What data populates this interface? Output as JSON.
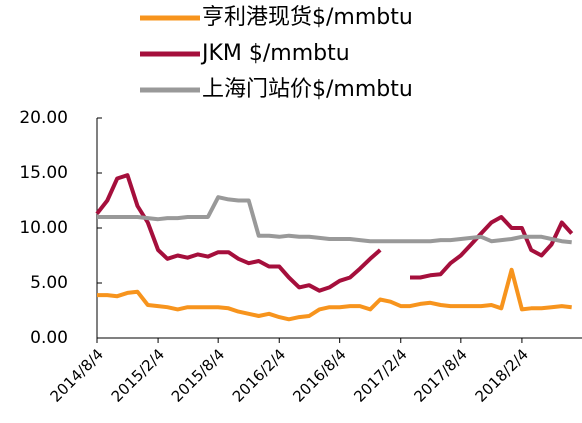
{
  "chart_data": {
    "type": "line",
    "x": [
      "2014/8/4",
      "2014/9/4",
      "2014/10/4",
      "2014/11/4",
      "2014/12/4",
      "2015/1/4",
      "2015/2/4",
      "2015/3/4",
      "2015/4/4",
      "2015/5/4",
      "2015/6/4",
      "2015/7/4",
      "2015/8/4",
      "2015/9/4",
      "2015/10/4",
      "2015/11/4",
      "2015/12/4",
      "2016/1/4",
      "2016/2/4",
      "2016/3/4",
      "2016/4/4",
      "2016/5/4",
      "2016/6/4",
      "2016/7/4",
      "2016/8/4",
      "2016/9/4",
      "2016/10/4",
      "2016/11/4",
      "2016/12/4",
      "2017/1/4",
      "2017/2/4",
      "2017/3/4",
      "2017/4/4",
      "2017/5/4",
      "2017/6/4",
      "2017/7/4",
      "2017/8/4",
      "2017/9/4",
      "2017/10/4",
      "2017/11/4",
      "2017/12/4",
      "2018/1/4",
      "2018/2/4",
      "2018/3/4",
      "2018/4/4",
      "2018/5/4",
      "2018/6/4",
      "2018/7/4"
    ],
    "series": [
      {
        "name": "亨利港现货$/mmbtu",
        "color": "#f7941d",
        "values": [
          3.9,
          3.9,
          3.8,
          4.1,
          4.2,
          3.0,
          2.9,
          2.8,
          2.6,
          2.8,
          2.8,
          2.8,
          2.8,
          2.7,
          2.4,
          2.2,
          2.0,
          2.2,
          1.9,
          1.7,
          1.9,
          2.0,
          2.6,
          2.8,
          2.8,
          2.9,
          2.9,
          2.6,
          3.5,
          3.3,
          2.9,
          2.9,
          3.1,
          3.2,
          3.0,
          2.9,
          2.9,
          2.9,
          2.9,
          3.0,
          2.7,
          6.2,
          2.6,
          2.7,
          2.7,
          2.8,
          2.9,
          2.8
        ]
      },
      {
        "name": "JKM $/mmbtu",
        "color": "#a50f3c",
        "values": [
          11.3,
          12.5,
          14.5,
          14.8,
          12.0,
          10.5,
          8.0,
          7.2,
          7.5,
          7.3,
          7.6,
          7.4,
          7.8,
          7.8,
          7.2,
          6.8,
          7.0,
          6.5,
          6.5,
          5.5,
          4.6,
          4.8,
          4.3,
          4.6,
          5.2,
          5.5,
          6.3,
          7.2,
          8.0,
          null,
          null,
          5.5,
          5.5,
          5.7,
          5.8,
          6.8,
          7.5,
          8.5,
          9.5,
          10.5,
          11.0,
          10.0,
          10.0,
          8.0,
          7.5,
          8.5,
          10.5,
          9.5
        ]
      },
      {
        "name": "上海门站价$/mmbtu",
        "color": "#999999",
        "values": [
          11.0,
          11.0,
          11.0,
          11.0,
          11.0,
          10.9,
          10.8,
          10.9,
          10.9,
          11.0,
          11.0,
          11.0,
          12.8,
          12.6,
          12.5,
          12.5,
          9.3,
          9.3,
          9.2,
          9.3,
          9.2,
          9.2,
          9.1,
          9.0,
          9.0,
          9.0,
          8.9,
          8.8,
          8.8,
          8.8,
          8.8,
          8.8,
          8.8,
          8.8,
          8.9,
          8.9,
          9.0,
          9.1,
          9.2,
          8.8,
          8.9,
          9.0,
          9.2,
          9.2,
          9.2,
          9.0,
          8.8,
          8.7
        ]
      }
    ],
    "xlim": [
      "2014/8/4",
      "2018/8/4"
    ],
    "xticks": [
      "2014/8/4",
      "2015/2/4",
      "2015/8/4",
      "2016/2/4",
      "2016/8/4",
      "2017/2/4",
      "2017/8/4",
      "2018/2/4"
    ],
    "ylim": [
      0,
      20
    ],
    "yticks": [
      {
        "value": 0,
        "label": "0.00"
      },
      {
        "value": 5,
        "label": "5.00"
      },
      {
        "value": 10,
        "label": "10.00"
      },
      {
        "value": 15,
        "label": "15.00"
      },
      {
        "value": 20,
        "label": "20.00"
      }
    ],
    "grid": false
  }
}
